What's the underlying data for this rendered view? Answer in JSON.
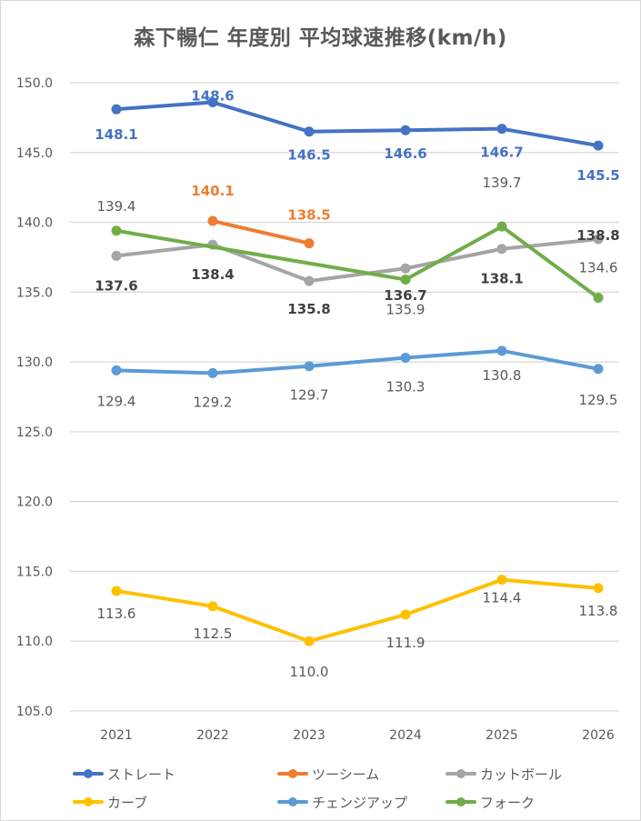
{
  "chart_data": {
    "type": "line",
    "title": "森下暢仁 年度別 平均球速推移(km/h)",
    "xlabel": "",
    "ylabel": "",
    "categories": [
      "2021",
      "2022",
      "2023",
      "2024",
      "2025",
      "2026"
    ],
    "ylim": [
      105.0,
      150.0
    ],
    "yticks": [
      "105.0",
      "110.0",
      "115.0",
      "120.0",
      "125.0",
      "130.0",
      "135.0",
      "140.0",
      "145.0",
      "150.0"
    ],
    "grid": true,
    "legend_position": "bottom",
    "series": [
      {
        "name": "ストレート",
        "color": "#4472c4",
        "label_color": "#4472c4",
        "values": [
          148.1,
          148.6,
          146.5,
          146.6,
          146.7,
          145.5
        ],
        "labels": [
          "148.1",
          "148.6",
          "146.5",
          "146.6",
          "146.7",
          "145.5"
        ]
      },
      {
        "name": "ツーシーム",
        "color": "#ed7d31",
        "label_color": "#ed7d31",
        "values": [
          null,
          140.1,
          138.5,
          null,
          null,
          null
        ],
        "labels": [
          "",
          "140.1",
          "138.5",
          "",
          "",
          ""
        ]
      },
      {
        "name": "カットボール",
        "color": "#a5a5a5",
        "label_color": "#404040",
        "values": [
          137.6,
          138.4,
          135.8,
          136.7,
          138.1,
          138.8
        ],
        "labels": [
          "137.6",
          "138.4",
          "135.8",
          "136.7",
          "138.1",
          "138.8"
        ]
      },
      {
        "name": "カーブ",
        "color": "#ffc000",
        "label_color": "#595959",
        "values": [
          113.6,
          112.5,
          110.0,
          111.9,
          114.4,
          113.8
        ],
        "labels": [
          "113.6",
          "112.5",
          "110.0",
          "111.9",
          "114.4",
          "113.8"
        ]
      },
      {
        "name": "チェンジアップ",
        "color": "#5b9bd5",
        "label_color": "#595959",
        "values": [
          129.4,
          129.2,
          129.7,
          130.3,
          130.8,
          129.5
        ],
        "labels": [
          "129.4",
          "129.2",
          "129.7",
          "130.3",
          "130.8",
          "129.5"
        ]
      },
      {
        "name": "フォーク",
        "color": "#70ad47",
        "label_color": "#595959",
        "values": [
          139.4,
          null,
          null,
          135.9,
          139.7,
          134.6
        ],
        "labels": [
          "139.4",
          "",
          "",
          "135.9",
          "139.7",
          "134.6"
        ]
      }
    ]
  }
}
